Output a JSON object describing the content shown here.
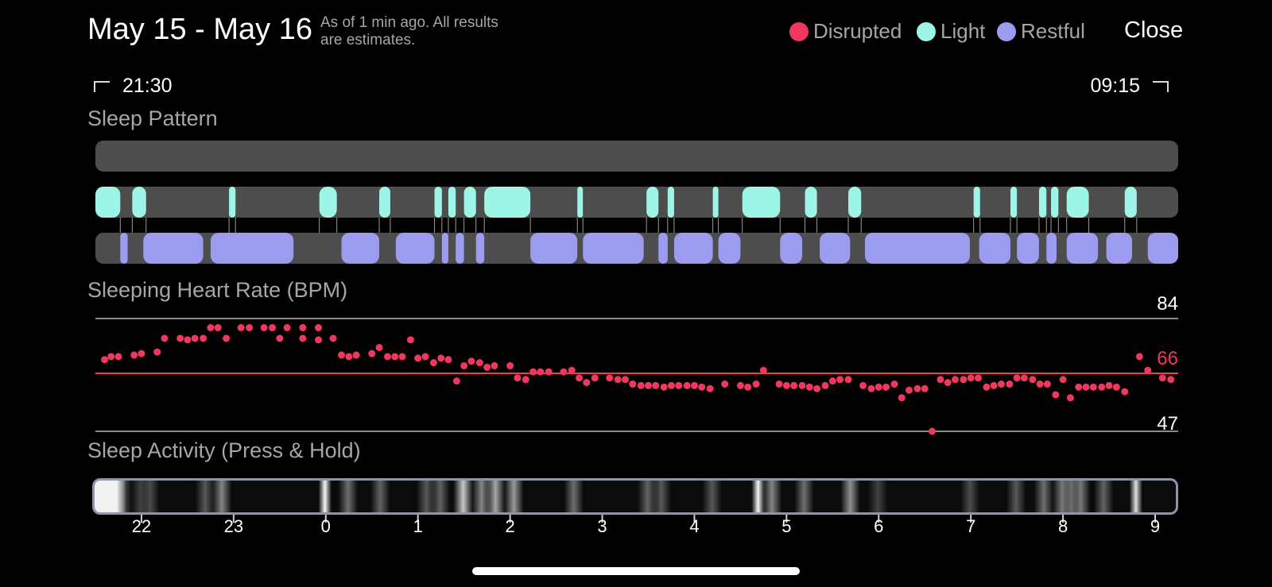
{
  "header": {
    "title": "May 15 - May 16",
    "subtitle_line1": "As of 1 min ago. All results",
    "subtitle_line2": "are estimates.",
    "close_label": "Close"
  },
  "legend": [
    {
      "label": "Disrupted",
      "color": "#f0385f"
    },
    {
      "label": "Light",
      "color": "#9df5e8"
    },
    {
      "label": "Restful",
      "color": "#9b9bf0"
    }
  ],
  "time_range": {
    "start": "21:30",
    "end": "09:15"
  },
  "sections": {
    "sleep_pattern": "Sleep Pattern",
    "heart_rate": "Sleeping Heart Rate (BPM)",
    "activity": "Sleep Activity (Press & Hold)"
  },
  "heart_rate_levels": {
    "max": "84",
    "avg": "66",
    "min": "47"
  },
  "hour_ticks": [
    "22",
    "23",
    "0",
    "1",
    "2",
    "3",
    "4",
    "5",
    "6",
    "7",
    "8",
    "9"
  ],
  "colors": {
    "disrupted": "#f0385f",
    "light": "#9df5e8",
    "restful": "#9b9bf0",
    "track": "#4d4d4d"
  },
  "chart_data": {
    "type": "scatter",
    "x_unit": "hours after midnight (May 16)",
    "xlim": [
      -2.5,
      9.25
    ],
    "ylim": [
      47,
      84
    ],
    "reference_lines": {
      "max": 84,
      "avg": 66,
      "min": 47
    },
    "sleep_pattern": {
      "disrupted": [],
      "light": [
        [
          -2.5,
          -2.23
        ],
        [
          -2.1,
          -1.95
        ],
        [
          -1.05,
          -0.98
        ],
        [
          -0.07,
          0.12
        ],
        [
          0.58,
          0.7
        ],
        [
          1.18,
          1.26
        ],
        [
          1.33,
          1.41
        ],
        [
          1.5,
          1.63
        ],
        [
          1.72,
          2.22
        ],
        [
          2.73,
          2.79
        ],
        [
          3.48,
          3.61
        ],
        [
          3.71,
          3.78
        ],
        [
          4.2,
          4.26
        ],
        [
          4.52,
          4.93
        ],
        [
          5.2,
          5.33
        ],
        [
          5.67,
          5.81
        ],
        [
          7.03,
          7.1
        ],
        [
          7.43,
          7.5
        ],
        [
          7.74,
          7.82
        ],
        [
          7.87,
          7.95
        ],
        [
          8.04,
          8.28
        ],
        [
          8.67,
          8.8
        ]
      ],
      "restful": [
        [
          -2.23,
          -2.15
        ],
        [
          -1.98,
          -1.33
        ],
        [
          -1.25,
          -0.35
        ],
        [
          0.17,
          0.58
        ],
        [
          0.76,
          1.18
        ],
        [
          1.26,
          1.33
        ],
        [
          1.41,
          1.5
        ],
        [
          1.63,
          1.72
        ],
        [
          2.22,
          2.73
        ],
        [
          2.79,
          3.45
        ],
        [
          3.61,
          3.71
        ],
        [
          3.78,
          4.2
        ],
        [
          4.26,
          4.5
        ],
        [
          4.93,
          5.17
        ],
        [
          5.36,
          5.69
        ],
        [
          5.85,
          6.99
        ],
        [
          7.09,
          7.43
        ],
        [
          7.5,
          7.74
        ],
        [
          7.82,
          7.93
        ],
        [
          8.04,
          8.38
        ],
        [
          8.47,
          8.75
        ],
        [
          8.92,
          9.25
        ]
      ]
    },
    "heart_rate": [
      {
        "x": -2.4,
        "y": 70.5
      },
      {
        "x": -2.33,
        "y": 71.5
      },
      {
        "x": -2.25,
        "y": 71.5
      },
      {
        "x": -2.08,
        "y": 72
      },
      {
        "x": -2.0,
        "y": 72.5
      },
      {
        "x": -1.83,
        "y": 73
      },
      {
        "x": -1.75,
        "y": 77.5
      },
      {
        "x": -1.58,
        "y": 77.5
      },
      {
        "x": -1.5,
        "y": 77
      },
      {
        "x": -1.42,
        "y": 77.5
      },
      {
        "x": -1.33,
        "y": 77.5
      },
      {
        "x": -1.25,
        "y": 81
      },
      {
        "x": -1.17,
        "y": 81
      },
      {
        "x": -1.08,
        "y": 77.5
      },
      {
        "x": -0.92,
        "y": 81
      },
      {
        "x": -0.83,
        "y": 81
      },
      {
        "x": -0.67,
        "y": 81
      },
      {
        "x": -0.58,
        "y": 81
      },
      {
        "x": -0.5,
        "y": 77.5
      },
      {
        "x": -0.42,
        "y": 81
      },
      {
        "x": -0.25,
        "y": 81
      },
      {
        "x": -0.25,
        "y": 77.5
      },
      {
        "x": -0.08,
        "y": 81
      },
      {
        "x": -0.08,
        "y": 77
      },
      {
        "x": 0.08,
        "y": 77.5
      },
      {
        "x": 0.17,
        "y": 72
      },
      {
        "x": 0.25,
        "y": 71.5
      },
      {
        "x": 0.33,
        "y": 72
      },
      {
        "x": 0.5,
        "y": 72.5
      },
      {
        "x": 0.58,
        "y": 74.5
      },
      {
        "x": 0.67,
        "y": 71.5
      },
      {
        "x": 0.75,
        "y": 71.5
      },
      {
        "x": 0.83,
        "y": 71.5
      },
      {
        "x": 0.92,
        "y": 77
      },
      {
        "x": 1.0,
        "y": 71
      },
      {
        "x": 1.08,
        "y": 71.5
      },
      {
        "x": 1.17,
        "y": 69.5
      },
      {
        "x": 1.25,
        "y": 71
      },
      {
        "x": 1.33,
        "y": 70.5
      },
      {
        "x": 1.42,
        "y": 63.5
      },
      {
        "x": 1.5,
        "y": 68.5
      },
      {
        "x": 1.58,
        "y": 70
      },
      {
        "x": 1.67,
        "y": 69.5
      },
      {
        "x": 1.75,
        "y": 68
      },
      {
        "x": 1.83,
        "y": 68.5
      },
      {
        "x": 2.0,
        "y": 68.5
      },
      {
        "x": 2.08,
        "y": 64.5
      },
      {
        "x": 2.17,
        "y": 64
      },
      {
        "x": 2.25,
        "y": 66.5
      },
      {
        "x": 2.33,
        "y": 66.5
      },
      {
        "x": 2.42,
        "y": 66.5
      },
      {
        "x": 2.58,
        "y": 66.5
      },
      {
        "x": 2.67,
        "y": 67
      },
      {
        "x": 2.75,
        "y": 64.5
      },
      {
        "x": 2.83,
        "y": 63
      },
      {
        "x": 2.92,
        "y": 64.5
      },
      {
        "x": 3.08,
        "y": 64.5
      },
      {
        "x": 3.17,
        "y": 64
      },
      {
        "x": 3.25,
        "y": 64
      },
      {
        "x": 3.33,
        "y": 62.5
      },
      {
        "x": 3.42,
        "y": 62
      },
      {
        "x": 3.5,
        "y": 62
      },
      {
        "x": 3.58,
        "y": 62
      },
      {
        "x": 3.67,
        "y": 61.5
      },
      {
        "x": 3.75,
        "y": 62
      },
      {
        "x": 3.83,
        "y": 62
      },
      {
        "x": 3.92,
        "y": 62
      },
      {
        "x": 4.0,
        "y": 62
      },
      {
        "x": 4.08,
        "y": 61.5
      },
      {
        "x": 4.17,
        "y": 61
      },
      {
        "x": 4.33,
        "y": 62.5
      },
      {
        "x": 4.5,
        "y": 62
      },
      {
        "x": 4.58,
        "y": 61.5
      },
      {
        "x": 4.67,
        "y": 62.5
      },
      {
        "x": 4.75,
        "y": 67
      },
      {
        "x": 4.92,
        "y": 62.5
      },
      {
        "x": 5.0,
        "y": 62
      },
      {
        "x": 5.08,
        "y": 62
      },
      {
        "x": 5.17,
        "y": 62
      },
      {
        "x": 5.25,
        "y": 61.5
      },
      {
        "x": 5.33,
        "y": 61
      },
      {
        "x": 5.42,
        "y": 62
      },
      {
        "x": 5.5,
        "y": 63.5
      },
      {
        "x": 5.58,
        "y": 64
      },
      {
        "x": 5.67,
        "y": 64
      },
      {
        "x": 5.83,
        "y": 62
      },
      {
        "x": 5.92,
        "y": 61
      },
      {
        "x": 6.0,
        "y": 61.5
      },
      {
        "x": 6.08,
        "y": 61.5
      },
      {
        "x": 6.17,
        "y": 62.5
      },
      {
        "x": 6.25,
        "y": 58
      },
      {
        "x": 6.33,
        "y": 60.5
      },
      {
        "x": 6.42,
        "y": 61
      },
      {
        "x": 6.5,
        "y": 61
      },
      {
        "x": 6.58,
        "y": 47
      },
      {
        "x": 6.67,
        "y": 64
      },
      {
        "x": 6.75,
        "y": 63
      },
      {
        "x": 6.83,
        "y": 64
      },
      {
        "x": 6.92,
        "y": 64
      },
      {
        "x": 7.0,
        "y": 64.5
      },
      {
        "x": 7.08,
        "y": 64.5
      },
      {
        "x": 7.17,
        "y": 61.5
      },
      {
        "x": 7.25,
        "y": 62
      },
      {
        "x": 7.33,
        "y": 62.5
      },
      {
        "x": 7.42,
        "y": 62.5
      },
      {
        "x": 7.5,
        "y": 64.5
      },
      {
        "x": 7.58,
        "y": 64.5
      },
      {
        "x": 7.67,
        "y": 64
      },
      {
        "x": 7.75,
        "y": 62.5
      },
      {
        "x": 7.83,
        "y": 62.5
      },
      {
        "x": 7.92,
        "y": 59
      },
      {
        "x": 8.0,
        "y": 64
      },
      {
        "x": 8.08,
        "y": 58
      },
      {
        "x": 8.17,
        "y": 61.5
      },
      {
        "x": 8.25,
        "y": 61.5
      },
      {
        "x": 8.33,
        "y": 61.5
      },
      {
        "x": 8.42,
        "y": 61.5
      },
      {
        "x": 8.5,
        "y": 62
      },
      {
        "x": 8.58,
        "y": 61.5
      },
      {
        "x": 8.67,
        "y": 60
      },
      {
        "x": 8.83,
        "y": 71.5
      },
      {
        "x": 8.92,
        "y": 67
      },
      {
        "x": 9.08,
        "y": 64.5
      },
      {
        "x": 9.17,
        "y": 64
      }
    ],
    "activity_intensity": [
      {
        "x": -2.45,
        "y": 1.0
      },
      {
        "x": -2.2,
        "y": 0.3
      },
      {
        "x": -2.0,
        "y": 0.2
      },
      {
        "x": -1.9,
        "y": 0.25
      },
      {
        "x": -1.3,
        "y": 0.3
      },
      {
        "x": -1.12,
        "y": 0.5
      },
      {
        "x": 0.0,
        "y": 1.0
      },
      {
        "x": 0.25,
        "y": 0.4
      },
      {
        "x": 0.6,
        "y": 0.35
      },
      {
        "x": 1.1,
        "y": 0.3
      },
      {
        "x": 1.25,
        "y": 0.35
      },
      {
        "x": 1.5,
        "y": 0.8
      },
      {
        "x": 1.7,
        "y": 0.5
      },
      {
        "x": 1.85,
        "y": 0.65
      },
      {
        "x": 2.05,
        "y": 0.6
      },
      {
        "x": 2.7,
        "y": 0.4
      },
      {
        "x": 3.5,
        "y": 0.35
      },
      {
        "x": 3.65,
        "y": 0.3
      },
      {
        "x": 4.2,
        "y": 0.3
      },
      {
        "x": 4.7,
        "y": 1.0
      },
      {
        "x": 4.85,
        "y": 0.5
      },
      {
        "x": 5.2,
        "y": 0.4
      },
      {
        "x": 5.7,
        "y": 0.55
      },
      {
        "x": 6.0,
        "y": 0.2
      },
      {
        "x": 7.0,
        "y": 0.25
      },
      {
        "x": 7.5,
        "y": 0.3
      },
      {
        "x": 7.8,
        "y": 0.4
      },
      {
        "x": 8.0,
        "y": 0.45
      },
      {
        "x": 8.1,
        "y": 0.4
      },
      {
        "x": 8.2,
        "y": 0.45
      },
      {
        "x": 8.45,
        "y": 0.35
      },
      {
        "x": 8.8,
        "y": 0.9
      }
    ]
  }
}
